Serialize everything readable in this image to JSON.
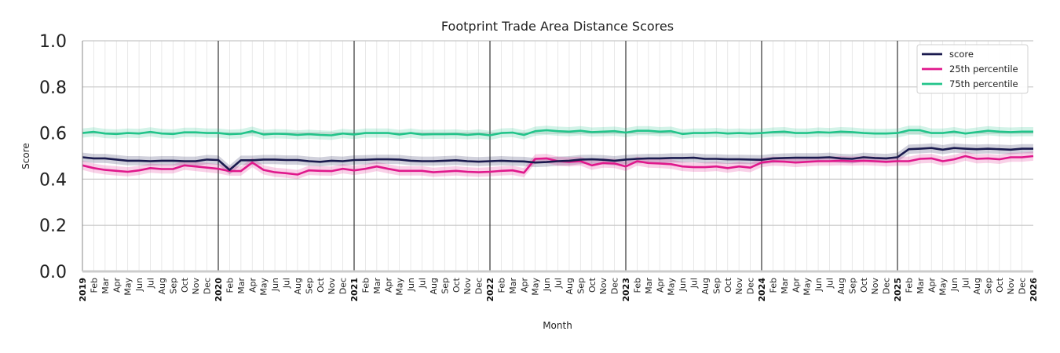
{
  "chart_data": {
    "type": "line",
    "title": "Footprint Trade Area Distance Scores",
    "xlabel": "Month",
    "ylabel": "Score",
    "ylim": [
      0.0,
      1.0
    ],
    "xlim": [
      "2019-01",
      "2026-01"
    ],
    "y_ticks": [
      "0.0",
      "0.2",
      "0.4",
      "0.6",
      "0.8",
      "1.0"
    ],
    "month_labels": [
      "Feb",
      "Mar",
      "Apr",
      "May",
      "Jun",
      "Jul",
      "Aug",
      "Sep",
      "Oct",
      "Nov",
      "Dec"
    ],
    "year_labels": [
      "2019",
      "2020",
      "2021",
      "2022",
      "2023",
      "2024",
      "2025",
      "2026"
    ],
    "grid": true,
    "legend_position": "top-right",
    "colors": {
      "score": "#1a1a4e",
      "p25": "#e0188c",
      "p75": "#22c48a",
      "grid": "#c8c8c8",
      "year_line": "#333333"
    },
    "band_width": 0.02,
    "series": [
      {
        "name": "score",
        "values": [
          0.495,
          0.49,
          0.49,
          0.485,
          0.48,
          0.48,
          0.478,
          0.48,
          0.48,
          0.478,
          0.478,
          0.485,
          0.483,
          0.44,
          0.482,
          0.482,
          0.485,
          0.485,
          0.483,
          0.483,
          0.478,
          0.475,
          0.48,
          0.478,
          0.483,
          0.484,
          0.486,
          0.486,
          0.485,
          0.48,
          0.478,
          0.478,
          0.48,
          0.482,
          0.478,
          0.476,
          0.478,
          0.48,
          0.478,
          0.477,
          0.472,
          0.474,
          0.478,
          0.48,
          0.485,
          0.486,
          0.484,
          0.48,
          0.485,
          0.488,
          0.49,
          0.49,
          0.492,
          0.492,
          0.493,
          0.488,
          0.488,
          0.486,
          0.486,
          0.485,
          0.484,
          0.49,
          0.492,
          0.493,
          0.493,
          0.493,
          0.495,
          0.49,
          0.488,
          0.495,
          0.492,
          0.49,
          0.495,
          0.53,
          0.532,
          0.535,
          0.528,
          0.535,
          0.532,
          0.53,
          0.532,
          0.53,
          0.528,
          0.532,
          0.532
        ]
      },
      {
        "name": "25th percentile",
        "values": [
          0.46,
          0.448,
          0.44,
          0.436,
          0.432,
          0.438,
          0.448,
          0.444,
          0.444,
          0.46,
          0.455,
          0.45,
          0.445,
          0.435,
          0.435,
          0.472,
          0.44,
          0.43,
          0.426,
          0.42,
          0.438,
          0.436,
          0.435,
          0.445,
          0.438,
          0.445,
          0.455,
          0.445,
          0.436,
          0.436,
          0.436,
          0.43,
          0.433,
          0.436,
          0.432,
          0.43,
          0.432,
          0.436,
          0.438,
          0.428,
          0.488,
          0.49,
          0.478,
          0.475,
          0.478,
          0.46,
          0.47,
          0.468,
          0.455,
          0.478,
          0.47,
          0.468,
          0.465,
          0.455,
          0.452,
          0.452,
          0.455,
          0.448,
          0.455,
          0.45,
          0.472,
          0.478,
          0.476,
          0.472,
          0.475,
          0.478,
          0.478,
          0.48,
          0.478,
          0.48,
          0.478,
          0.475,
          0.478,
          0.478,
          0.488,
          0.49,
          0.478,
          0.486,
          0.5,
          0.488,
          0.49,
          0.486,
          0.495,
          0.495,
          0.5
        ]
      },
      {
        "name": "75th percentile",
        "values": [
          0.6,
          0.605,
          0.598,
          0.596,
          0.6,
          0.598,
          0.605,
          0.598,
          0.596,
          0.603,
          0.603,
          0.6,
          0.6,
          0.595,
          0.597,
          0.608,
          0.594,
          0.597,
          0.596,
          0.592,
          0.595,
          0.592,
          0.59,
          0.598,
          0.594,
          0.6,
          0.6,
          0.6,
          0.594,
          0.6,
          0.594,
          0.595,
          0.595,
          0.596,
          0.592,
          0.596,
          0.59,
          0.6,
          0.602,
          0.592,
          0.608,
          0.612,
          0.608,
          0.606,
          0.61,
          0.604,
          0.606,
          0.608,
          0.602,
          0.61,
          0.61,
          0.606,
          0.608,
          0.596,
          0.6,
          0.6,
          0.602,
          0.598,
          0.6,
          0.598,
          0.6,
          0.604,
          0.606,
          0.6,
          0.6,
          0.604,
          0.602,
          0.606,
          0.604,
          0.6,
          0.598,
          0.598,
          0.6,
          0.612,
          0.612,
          0.6,
          0.6,
          0.606,
          0.598,
          0.604,
          0.61,
          0.606,
          0.604,
          0.606,
          0.606
        ]
      }
    ]
  }
}
